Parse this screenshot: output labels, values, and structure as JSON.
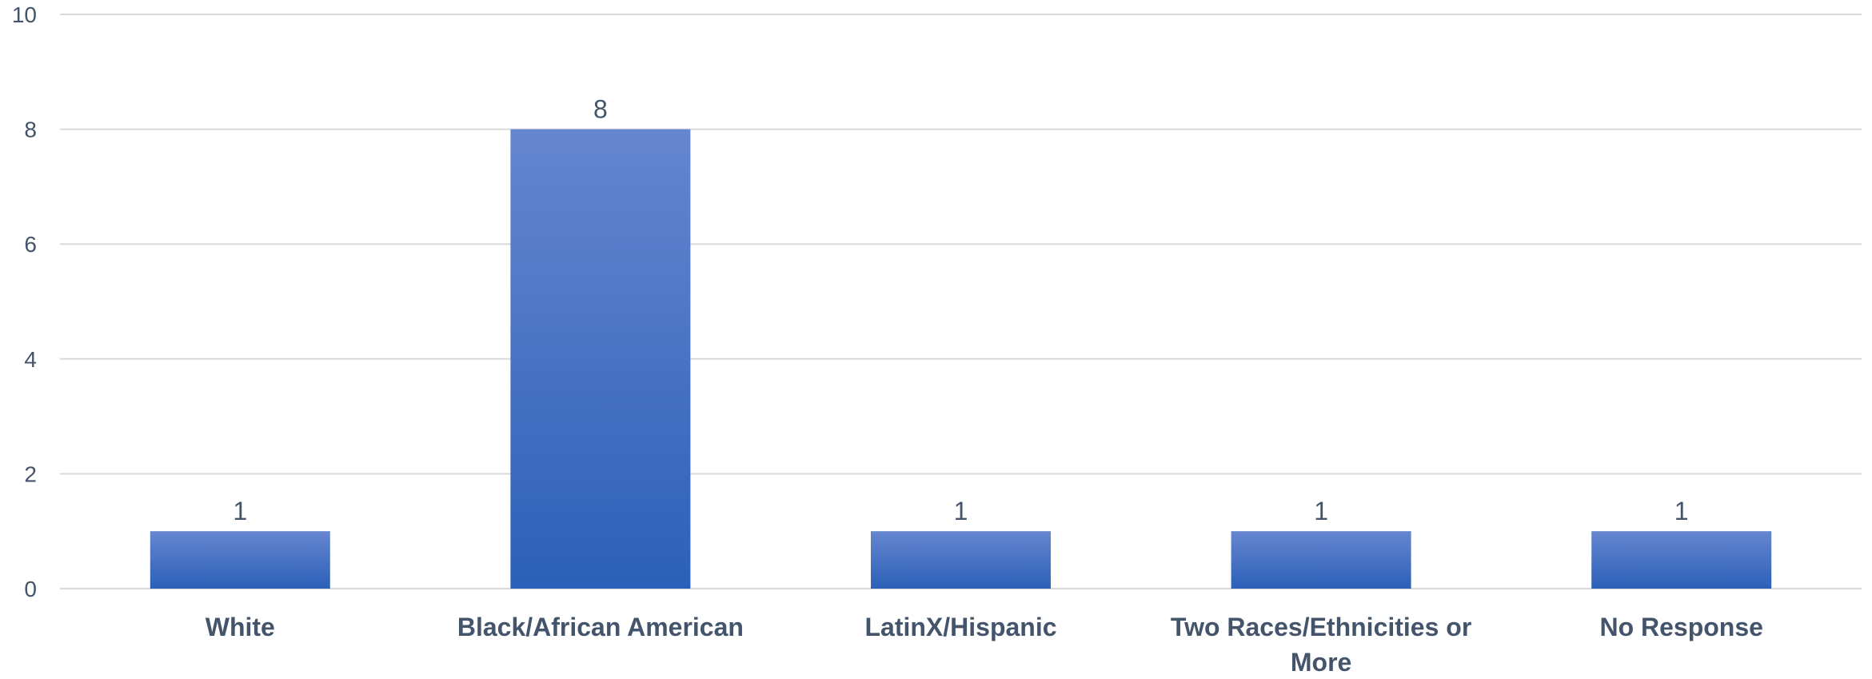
{
  "chart_data": {
    "type": "bar",
    "title": "",
    "xlabel": "",
    "ylabel": "",
    "categories": [
      "White",
      "Black/African American",
      "LatinX/Hispanic",
      "Two Races/Ethnicities or More",
      "No Response"
    ],
    "category_lines": [
      [
        "White"
      ],
      [
        "Black/African American"
      ],
      [
        "LatinX/Hispanic"
      ],
      [
        "Two Races/Ethnicities or",
        "More"
      ],
      [
        "No Response"
      ]
    ],
    "values": [
      1,
      8,
      1,
      1,
      1
    ],
    "ylim": [
      0,
      10
    ],
    "yticks": [
      0,
      2,
      4,
      6,
      8,
      10
    ],
    "grid": true,
    "legend": "none",
    "data_labels": true,
    "colors": {
      "bar_top": "#6686cf",
      "bar_bottom": "#2c60b8",
      "gridline": "#d9d9d9",
      "text": "#44546a"
    }
  }
}
